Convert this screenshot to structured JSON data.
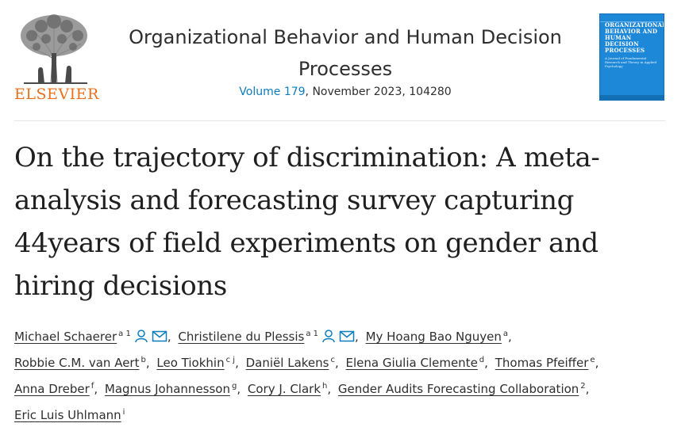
{
  "publisher": {
    "name": "ELSEVIER",
    "logo_icon": "elsevier-tree-icon"
  },
  "journal": {
    "title_line1": "Organizational Behavior and Human Decision",
    "title_line2": "Processes",
    "volume_label": "Volume 179",
    "issue_rest": ", November 2023, 104280"
  },
  "cover": {
    "title": "ORGANIZATIONAL BEHAVIOR AND HUMAN DECISION PROCESSES",
    "subtitle": "A Journal of Fundamental Research and Theory in Applied Psychology"
  },
  "article": {
    "title_lines": [
      "On the trajectory of discrimination: A meta-",
      "analysis and forecasting survey capturing",
      "44years of field experiments on gender and",
      "hiring decisions"
    ]
  },
  "authors": [
    {
      "name": "Michael Schaerer",
      "sup": "a 1",
      "icons": true
    },
    {
      "name": "Christilene du Plessis",
      "sup": "a 1",
      "icons": true
    },
    {
      "name": "My Hoang Bao Nguyen",
      "sup": "a"
    },
    {
      "name": "Robbie C.M. van Aert",
      "sup": "b"
    },
    {
      "name": "Leo Tiokhin",
      "sup": "c j"
    },
    {
      "name": "Daniël Lakens",
      "sup": "c"
    },
    {
      "name": "Elena Giulia Clemente",
      "sup": "d"
    },
    {
      "name": "Thomas Pfeiffer",
      "sup": "e"
    },
    {
      "name": "Anna Dreber",
      "sup": "f"
    },
    {
      "name": "Magnus Johannesson",
      "sup": "g"
    },
    {
      "name": "Cory J. Clark",
      "sup": "h"
    },
    {
      "name": "Gender Audits Forecasting Collaboration",
      "sup": "2"
    },
    {
      "name": "Eric Luis Uhlmann",
      "sup": "i"
    }
  ],
  "colors": {
    "accent": "#0c7dbb",
    "publisher_orange": "#e9711c",
    "cover_blue": "#1d88d8"
  }
}
